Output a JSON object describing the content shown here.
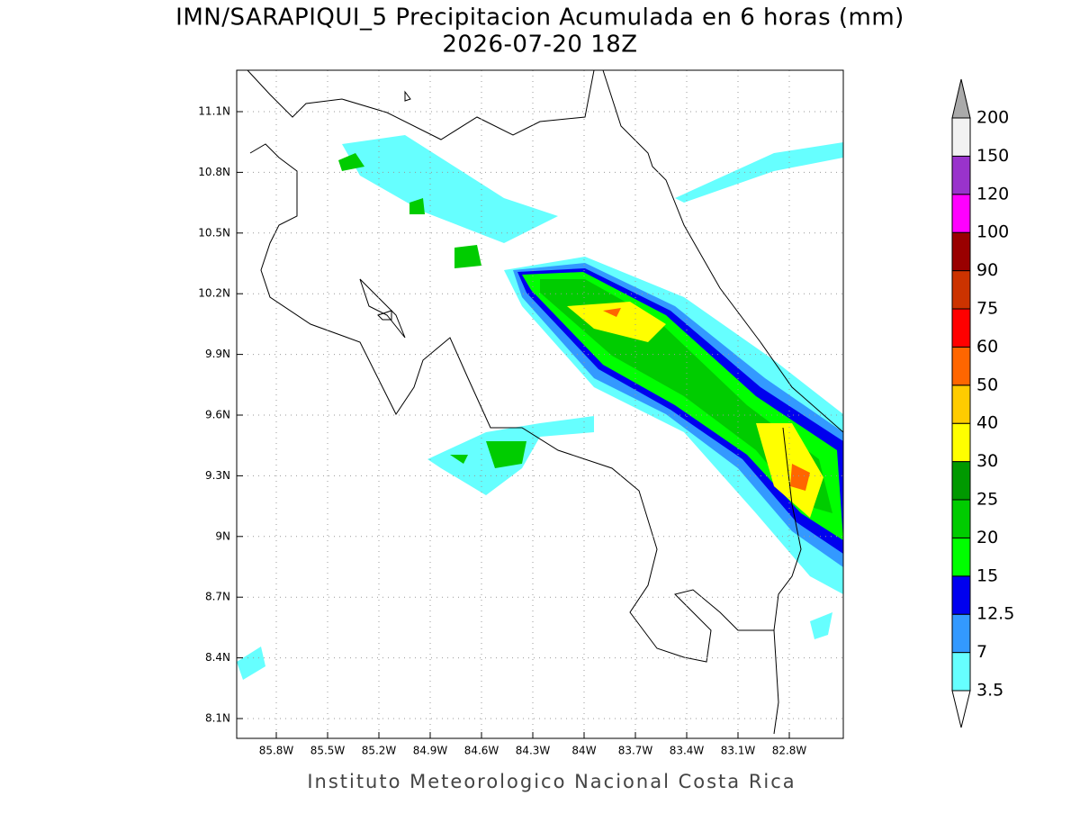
{
  "title": "IMN/SARAPIQUI_5 Precipitacion Acumulada en 6 horas (mm)",
  "subtitle": "2026-07-20 18Z",
  "map": {
    "lon_ticks": [
      "85.8W",
      "85.5W",
      "85.2W",
      "84.9W",
      "84.6W",
      "84.3W",
      "84W",
      "83.7W",
      "83.4W",
      "83.1W",
      "82.8W"
    ],
    "lat_ticks": [
      "11.1N",
      "10.8N",
      "10.5N",
      "10.2N",
      "9.9N",
      "9.6N",
      "9.3N",
      "9N",
      "8.7N",
      "8.4N",
      "8.1N"
    ]
  },
  "colorbar": {
    "labels": [
      "3.5",
      "7",
      "12.5",
      "15",
      "20",
      "25",
      "30",
      "40",
      "50",
      "60",
      "75",
      "90",
      "100",
      "120",
      "150",
      "200"
    ],
    "colors": [
      "#ffffff",
      "#66ffff",
      "#3399ff",
      "#0000ee",
      "#00ff00",
      "#00cc00",
      "#009900",
      "#ffff00",
      "#ffcc00",
      "#ff6600",
      "#ff0000",
      "#cc3300",
      "#990000",
      "#ff00ff",
      "#9933cc",
      "#f2f2f2",
      "#aaaaaa"
    ]
  },
  "footer": "Instituto Meteorologico Nacional Costa Rica"
}
